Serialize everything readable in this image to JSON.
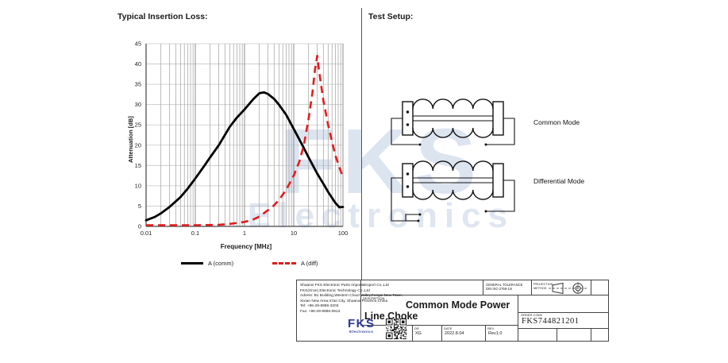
{
  "chart": {
    "section_title": "Typical Insertion Loss:"
  },
  "test_setup": {
    "section_title": "Test Setup:",
    "common_mode_label": "Common Mode",
    "differential_mode_label": "Differential Mode"
  },
  "watermark": {
    "line1": "FKS",
    "line2": "Electronics"
  },
  "title_block": {
    "company_lines": [
      "Shaanxi FKS Electronic Parts Import&Export Co.,Ltd",
      "FKS(Xi'an) Electronic Technology Co.,Ltd",
      "Adress: B1 Building,Western Cloud Valley,Fengxi New Town,",
      "Xixian New Area,Xi'an City, Shaanxi Province,China",
      "Tel:  +86-29-8986-3203",
      "Fax: +86-29-8986-0913"
    ],
    "logo_text": "FKS",
    "logo_sub": "Electronics",
    "tolerance_label": "GENERAL TOLERANCE",
    "tolerance_value": "DIN ISO 2768-1m",
    "projection_label": "PROJECTION METHOD",
    "description_label": "DESCRIPTION",
    "description": "Common Mode Power Line Choke",
    "order_code_label": "ORDER CODE",
    "order_code": "FKS744821201",
    "dr_label": "DR",
    "dr_value": "XG",
    "date_label": "DATE",
    "date_value": "2022.8.04",
    "rev_label": "REV",
    "rev_value": "Rev1.0"
  },
  "chart_data": {
    "type": "line",
    "title": "Typical Insertion Loss:",
    "xlabel": "Frequency [MHz]",
    "ylabel": "Attenuation [dB]",
    "x_scale": "log",
    "xlim": [
      0.01,
      100
    ],
    "ylim": [
      0,
      45
    ],
    "x_ticks": [
      0.01,
      0.1,
      1,
      10,
      100
    ],
    "y_ticks": [
      0,
      5,
      10,
      15,
      20,
      25,
      30,
      35,
      40,
      45
    ],
    "grid": true,
    "legend_position": "bottom",
    "series": [
      {
        "name": "A (comm)",
        "color": "#000000",
        "style": "solid",
        "x": [
          0.01,
          0.015,
          0.02,
          0.03,
          0.05,
          0.07,
          0.1,
          0.15,
          0.2,
          0.3,
          0.5,
          0.7,
          1,
          1.5,
          2,
          2.5,
          3,
          4,
          5,
          7,
          10,
          15,
          20,
          30,
          40,
          50,
          70,
          85,
          100
        ],
        "y": [
          1.5,
          2.3,
          3.2,
          4.8,
          7.2,
          9.3,
          11.8,
          14.8,
          17,
          20,
          24.5,
          26.8,
          28.8,
          31.3,
          32.8,
          33,
          32.6,
          31.4,
          30,
          27.5,
          24,
          20,
          17,
          13,
          10.5,
          8.5,
          5.8,
          4.7,
          4.8
        ]
      },
      {
        "name": "A (diff)",
        "color": "#e51b1b",
        "style": "dashed",
        "x": [
          0.01,
          0.05,
          0.1,
          0.3,
          0.5,
          1,
          1.5,
          2,
          3,
          4,
          5,
          7,
          10,
          13,
          16,
          20,
          24,
          27,
          30,
          33,
          40,
          50,
          70,
          100
        ],
        "y": [
          0.3,
          0.3,
          0.3,
          0.4,
          0.6,
          1.1,
          1.7,
          2.4,
          4,
          5.2,
          6.5,
          9,
          12.5,
          16,
          20,
          26.5,
          33,
          38.5,
          42,
          38,
          31,
          25,
          17.5,
          12
        ]
      }
    ]
  }
}
